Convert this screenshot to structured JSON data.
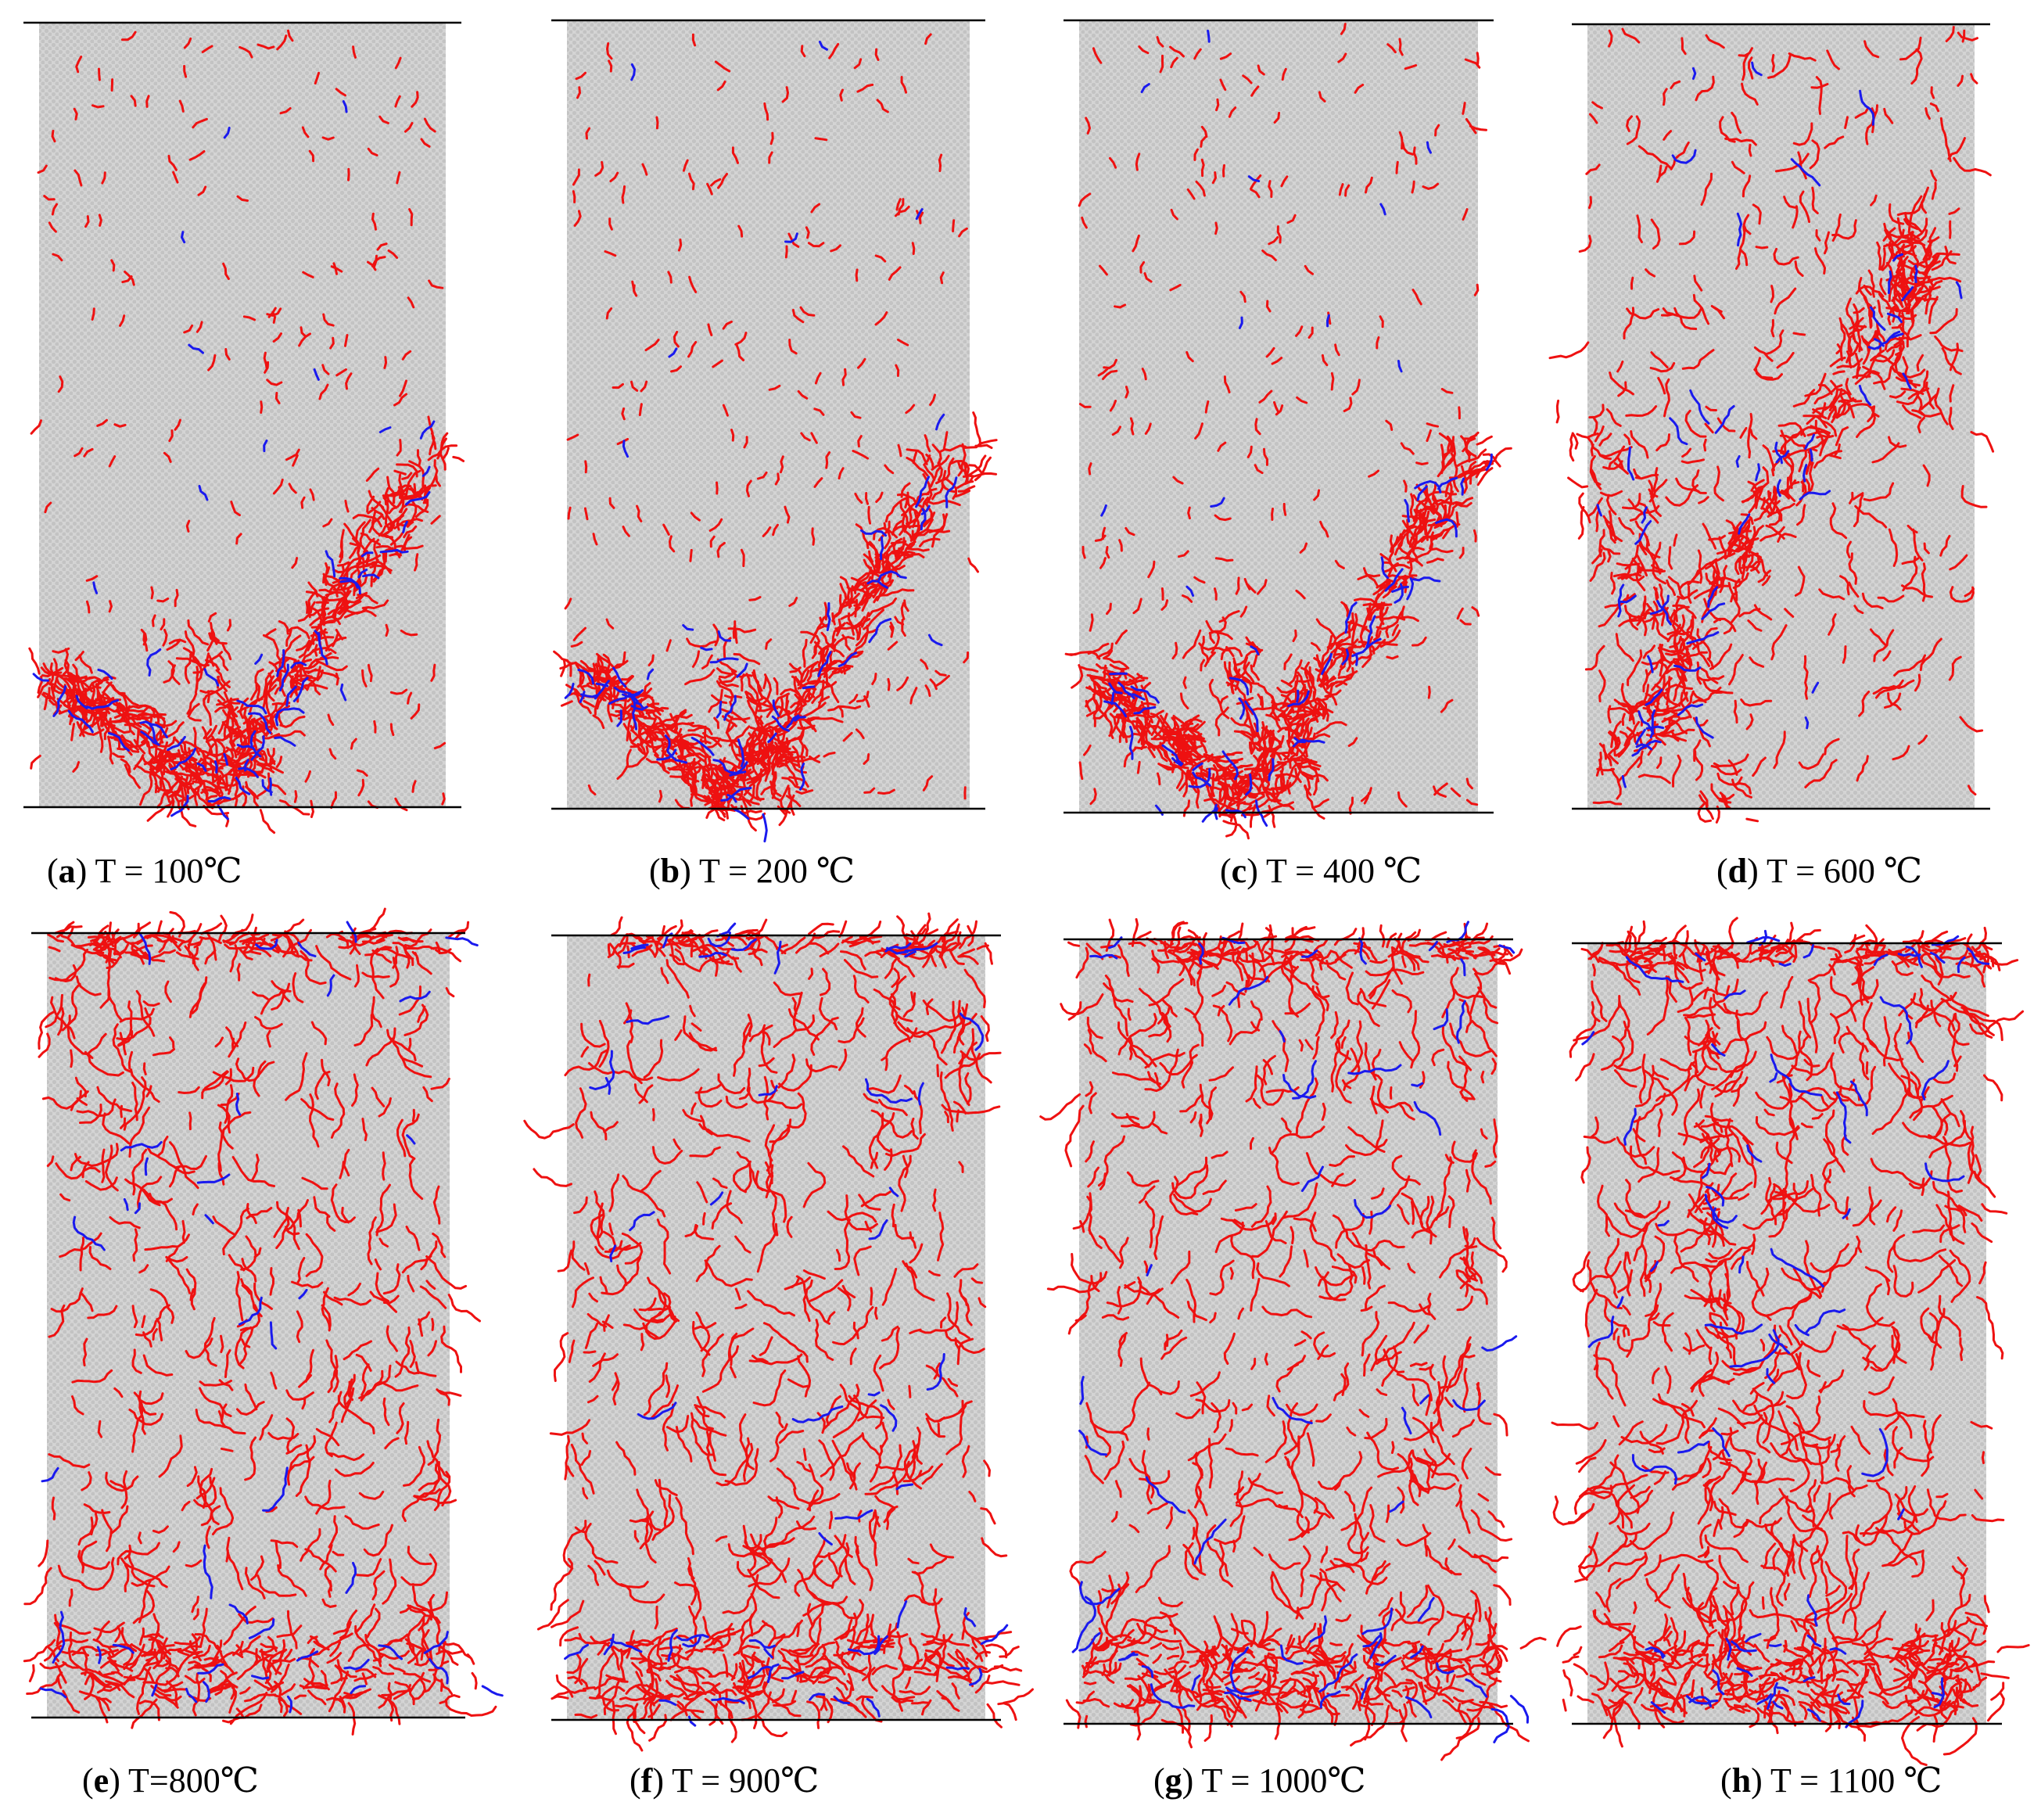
{
  "figure": {
    "colors": {
      "background": "#ffffff",
      "particles": "#c3c3c3",
      "tensile_cracks": "#ee1111",
      "shear_cracks": "#1a1aee",
      "loading_plates": "#000000"
    },
    "panels": [
      {
        "letter": "a",
        "label": " T = 100℃",
        "temperature_c": 100,
        "crack_pattern": "v-shaped macro-crack, lower half",
        "crack_level": 0.12
      },
      {
        "letter": "b",
        "label": " T = 200 ℃",
        "temperature_c": 200,
        "crack_pattern": "v-shaped macro-crack, lower half",
        "crack_level": 0.15
      },
      {
        "letter": "c",
        "label": " T = 400 ℃",
        "temperature_c": 400,
        "crack_pattern": "v-shaped macro-crack, lower half",
        "crack_level": 0.17
      },
      {
        "letter": "d",
        "label": " T = 600 ℃",
        "temperature_c": 600,
        "crack_pattern": "inclined shear band",
        "crack_level": 0.3
      },
      {
        "letter": "e",
        "label": " T=800℃",
        "temperature_c": 800,
        "crack_pattern": "distributed network",
        "crack_level": 0.62
      },
      {
        "letter": "f",
        "label": " T = 900℃",
        "temperature_c": 900,
        "crack_pattern": "distributed network",
        "crack_level": 0.7
      },
      {
        "letter": "g",
        "label": " T = 1000℃",
        "temperature_c": 1000,
        "crack_pattern": "distributed network",
        "crack_level": 0.78
      },
      {
        "letter": "h",
        "label": " T = 1100 ℃",
        "temperature_c": 1100,
        "crack_pattern": "distributed network with vertical split",
        "crack_level": 0.85
      }
    ]
  }
}
